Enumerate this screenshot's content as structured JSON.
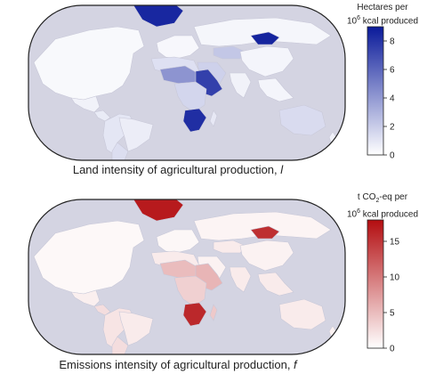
{
  "panels": {
    "land": {
      "caption": "Land intensity of agricultural production, ",
      "caption_var": "l",
      "colorbar": {
        "title_line1": "Hectares per",
        "title_line2_base": "10",
        "title_line2_sup": "6",
        "title_line2_rest": " kcal produced",
        "ticks": [
          0,
          2,
          4,
          6,
          8
        ],
        "range": [
          0,
          9
        ],
        "color_low": "#ffffff",
        "color_high": "#0a1a9a"
      },
      "regions": [
        {
          "name": "greenland",
          "value": 8.5
        },
        {
          "name": "north-america",
          "value": 0.25
        },
        {
          "name": "mexico",
          "value": 0.5
        },
        {
          "name": "central-america",
          "value": 0.8
        },
        {
          "name": "south-america",
          "value": 1.0
        },
        {
          "name": "brazil",
          "value": 0.7
        },
        {
          "name": "argentina",
          "value": 1.3
        },
        {
          "name": "europe",
          "value": 0.3
        },
        {
          "name": "russia",
          "value": 0.35
        },
        {
          "name": "kazakhstan",
          "value": 2.2
        },
        {
          "name": "mongolia",
          "value": 8.6
        },
        {
          "name": "china",
          "value": 0.4
        },
        {
          "name": "india",
          "value": 0.5
        },
        {
          "name": "southeast-asia",
          "value": 0.4
        },
        {
          "name": "middle-east",
          "value": 1.8
        },
        {
          "name": "north-africa",
          "value": 1.2
        },
        {
          "name": "sahel",
          "value": 4.2
        },
        {
          "name": "sudan-horn",
          "value": 7.5
        },
        {
          "name": "central-africa",
          "value": 1.6
        },
        {
          "name": "southern-africa",
          "value": 8.2
        },
        {
          "name": "madagascar",
          "value": 0.9
        },
        {
          "name": "australia",
          "value": 1.4
        },
        {
          "name": "new-zealand",
          "value": 0.6
        }
      ]
    },
    "emissions": {
      "caption": "Emissions intensity of agricultural production, ",
      "caption_var": "f",
      "colorbar": {
        "title_line1_base": "t CO",
        "title_line1_sub": "2",
        "title_line1_rest": "-eq per",
        "title_line2_base": "10",
        "title_line2_sup": "6",
        "title_line2_rest": " kcal produced",
        "ticks": [
          0,
          5,
          10,
          15
        ],
        "range": [
          0,
          18
        ],
        "color_low": "#ffffff",
        "color_high": "#b30d10"
      },
      "regions": [
        {
          "name": "greenland",
          "value": 17.0
        },
        {
          "name": "north-america",
          "value": 0.5
        },
        {
          "name": "mexico",
          "value": 1.2
        },
        {
          "name": "central-america",
          "value": 2.5
        },
        {
          "name": "south-america",
          "value": 2.0
        },
        {
          "name": "brazil",
          "value": 1.5
        },
        {
          "name": "argentina",
          "value": 2.5
        },
        {
          "name": "europe",
          "value": 0.6
        },
        {
          "name": "russia",
          "value": 0.8
        },
        {
          "name": "kazakhstan",
          "value": 1.5
        },
        {
          "name": "mongolia",
          "value": 15.5
        },
        {
          "name": "china",
          "value": 1.0
        },
        {
          "name": "india",
          "value": 1.5
        },
        {
          "name": "southeast-asia",
          "value": 1.5
        },
        {
          "name": "middle-east",
          "value": 1.0
        },
        {
          "name": "north-africa",
          "value": 1.5
        },
        {
          "name": "sahel",
          "value": 5.0
        },
        {
          "name": "sudan-horn",
          "value": 5.5
        },
        {
          "name": "central-africa",
          "value": 3.5
        },
        {
          "name": "southern-africa",
          "value": 16.0
        },
        {
          "name": "madagascar",
          "value": 4.0
        },
        {
          "name": "australia",
          "value": 1.5
        },
        {
          "name": "new-zealand",
          "value": 1.0
        }
      ]
    }
  }
}
